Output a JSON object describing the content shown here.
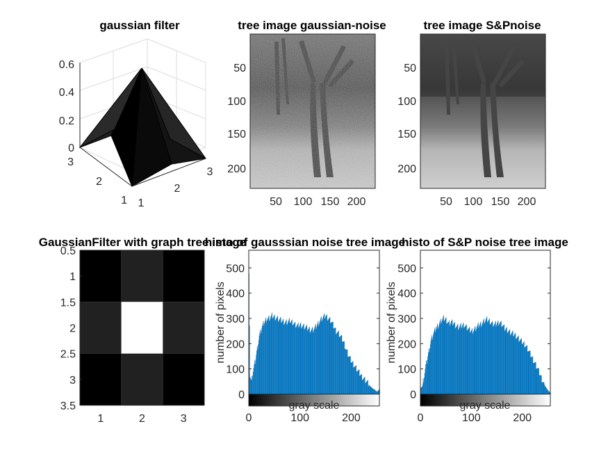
{
  "figure": {
    "background": "#ffffff",
    "hist_color": "#0072bd"
  },
  "chart_data": [
    {
      "id": "p1",
      "type": "surface3d",
      "title": "gaussian filter",
      "x": [
        1,
        2,
        3
      ],
      "y": [
        1,
        2,
        3
      ],
      "z": [
        [
          0.0113,
          0.0838,
          0.0113
        ],
        [
          0.0838,
          0.6193,
          0.0838
        ],
        [
          0.0113,
          0.0838,
          0.0113
        ]
      ],
      "xlim": [
        1,
        3
      ],
      "ylim": [
        1,
        3
      ],
      "zlim": [
        0,
        0.62
      ],
      "xticks": [
        "1",
        "2",
        "3"
      ],
      "yticks": [
        "1",
        "2",
        "3"
      ],
      "zticks": [
        "0",
        "0.2",
        "0.4",
        "0.6"
      ],
      "colormap": "gray",
      "grid": true
    },
    {
      "id": "p2",
      "type": "image",
      "title": "tree image gaussian-noise",
      "image_size": [
        235,
        235
      ],
      "xticks": [
        "50",
        "100",
        "150",
        "200"
      ],
      "yticks": [
        "50",
        "100",
        "150",
        "200"
      ],
      "noise": "gaussian"
    },
    {
      "id": "p3",
      "type": "image",
      "title": "tree image S&Pnoise",
      "image_size": [
        235,
        235
      ],
      "xticks": [
        "50",
        "100",
        "150",
        "200"
      ],
      "yticks": [
        "50",
        "100",
        "150",
        "200"
      ],
      "noise": "salt-and-pepper"
    },
    {
      "id": "p4",
      "type": "heatmap",
      "title": "GaussianFilter with graph tree image",
      "colormap": "gray",
      "values": [
        [
          0.0113,
          0.0838,
          0.0113
        ],
        [
          0.0838,
          0.6193,
          0.0838
        ],
        [
          0.0113,
          0.0838,
          0.0113
        ]
      ],
      "xlim": [
        0.5,
        3.5
      ],
      "ylim": [
        0.5,
        3.5
      ],
      "xticks": [
        "1",
        "2",
        "3"
      ],
      "yticks": [
        "0.5",
        "1",
        "1.5",
        "2",
        "2.5",
        "3",
        "3.5"
      ]
    },
    {
      "id": "p5",
      "type": "bar",
      "title": "histo of gausssian noise tree image",
      "xlabel": "gray scale",
      "ylabel": "number of pixels",
      "xlim": [
        0,
        255
      ],
      "ylim": [
        0,
        570
      ],
      "xticks": [
        "0",
        "100",
        "200"
      ],
      "yticks": [
        "0",
        "100",
        "200",
        "300",
        "400",
        "500"
      ],
      "x": [
        0,
        2,
        4,
        8,
        12,
        16,
        20,
        25,
        30,
        35,
        40,
        45,
        50,
        55,
        60,
        65,
        70,
        75,
        80,
        85,
        90,
        95,
        100,
        105,
        110,
        115,
        120,
        125,
        130,
        135,
        140,
        145,
        150,
        155,
        160,
        165,
        170,
        175,
        180,
        185,
        190,
        195,
        200,
        205,
        210,
        215,
        220,
        225,
        230,
        235,
        240,
        245,
        250,
        255
      ],
      "values": [
        490,
        70,
        50,
        90,
        130,
        180,
        230,
        265,
        285,
        300,
        300,
        310,
        305,
        300,
        295,
        290,
        285,
        285,
        290,
        285,
        275,
        270,
        275,
        270,
        265,
        260,
        255,
        255,
        265,
        280,
        295,
        305,
        310,
        300,
        290,
        270,
        250,
        240,
        225,
        205,
        175,
        150,
        130,
        115,
        100,
        85,
        70,
        60,
        48,
        35,
        25,
        18,
        10,
        20
      ]
    },
    {
      "id": "p6",
      "type": "bar",
      "title": "histo of S&P noise  tree image",
      "xlabel": "gray scale",
      "ylabel": "number of pixels",
      "xlim": [
        0,
        255
      ],
      "ylim": [
        0,
        570
      ],
      "xticks": [
        "0",
        "100",
        "200"
      ],
      "yticks": [
        "0",
        "100",
        "200",
        "300",
        "400",
        "500"
      ],
      "x": [
        0,
        3,
        6,
        10,
        15,
        20,
        25,
        30,
        35,
        40,
        45,
        50,
        55,
        60,
        65,
        70,
        75,
        80,
        85,
        90,
        95,
        100,
        105,
        110,
        115,
        120,
        125,
        130,
        135,
        140,
        145,
        150,
        155,
        160,
        165,
        170,
        175,
        180,
        185,
        190,
        195,
        200,
        205,
        210,
        215,
        220,
        225,
        230,
        235,
        240,
        245,
        250,
        255
      ],
      "values": [
        25,
        30,
        60,
        110,
        160,
        210,
        240,
        260,
        275,
        290,
        300,
        295,
        280,
        285,
        280,
        270,
        265,
        270,
        275,
        265,
        255,
        250,
        255,
        265,
        275,
        280,
        290,
        295,
        290,
        280,
        275,
        280,
        285,
        275,
        260,
        255,
        245,
        240,
        235,
        225,
        215,
        205,
        195,
        180,
        160,
        140,
        120,
        100,
        75,
        50,
        30,
        15,
        5
      ]
    }
  ]
}
